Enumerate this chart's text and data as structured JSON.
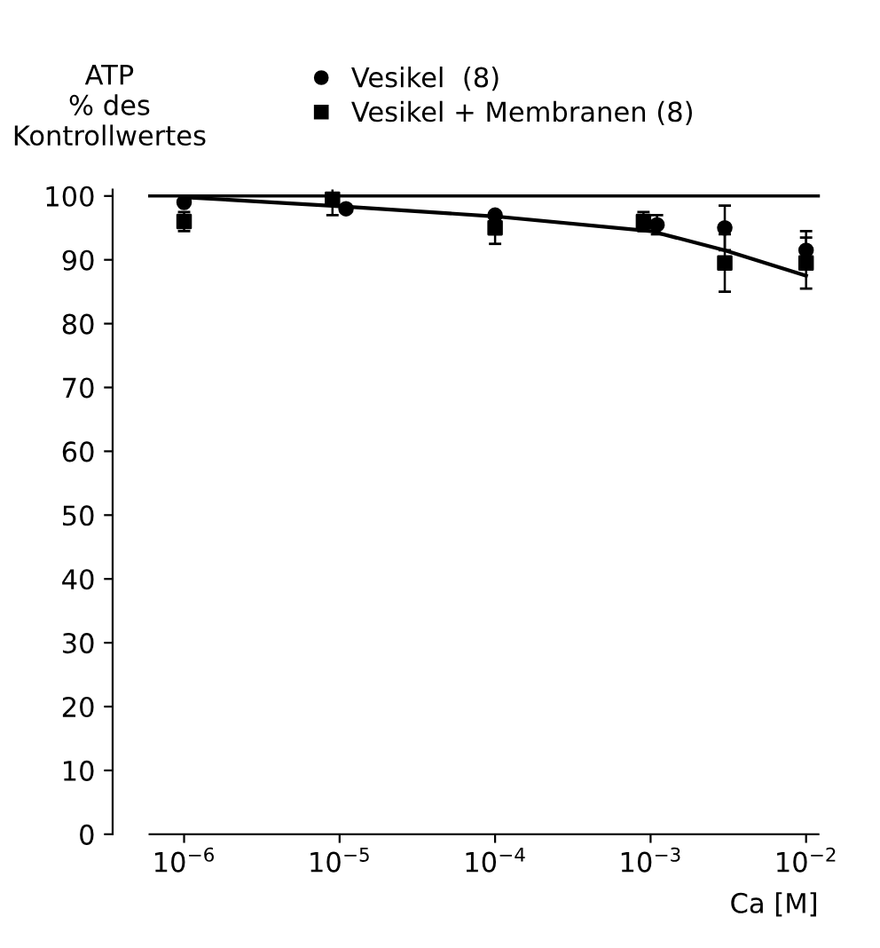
{
  "chart_data": {
    "type": "scatter",
    "ylabel": "ATP\n% des\nKontrollwertes",
    "xlabel": "Ca [M]",
    "log": "x",
    "xlim": [
      6e-07,
      0.012
    ],
    "xticks": [
      {
        "value": 1e-06,
        "label": "10$^{−6}$"
      },
      {
        "value": 1e-05,
        "label": "10$^{−5}$"
      },
      {
        "value": 0.0001,
        "label": "10$^{−4}$"
      },
      {
        "value": 0.001,
        "label": "10$^{−3}$"
      },
      {
        "value": 0.01,
        "label": "10$^{−2}$"
      }
    ],
    "ylim": [
      0,
      101
    ],
    "yticks": [
      0,
      10,
      20,
      30,
      40,
      50,
      60,
      70,
      80,
      90,
      100
    ],
    "grid": false,
    "legend": "top left",
    "ref_lines": [
      {
        "axis": "y",
        "value": 100,
        "color": "#000000"
      }
    ],
    "series": [
      {
        "name": "Vesikel  (8)",
        "color": "#000000",
        "marker": "circle",
        "x": [
          1e-06,
          1.1e-05,
          0.0001,
          0.0011,
          0.003,
          0.01
        ],
        "values": [
          99,
          98,
          97,
          95.5,
          95,
          91.5
        ],
        "errors": [
          null,
          null,
          null,
          1.5,
          3.5,
          3
        ]
      },
      {
        "name": "Vesikel + Membranen (8)",
        "color": "#000000",
        "marker": "square",
        "x": [
          1e-06,
          9e-06,
          0.0001,
          0.0009,
          0.003,
          0.01
        ],
        "values": [
          96,
          99.5,
          95,
          96,
          89.5,
          89.5
        ],
        "errors": [
          1.5,
          2.5,
          2.5,
          1.5,
          4.5,
          4
        ]
      },
      {
        "type": "line",
        "color": "#000000",
        "x": [
          1e-06,
          1e-05,
          0.0001,
          0.001,
          0.003,
          0.01
        ],
        "values": [
          99.8,
          98.4,
          96.8,
          94.5,
          91.5,
          87.5
        ]
      }
    ]
  }
}
